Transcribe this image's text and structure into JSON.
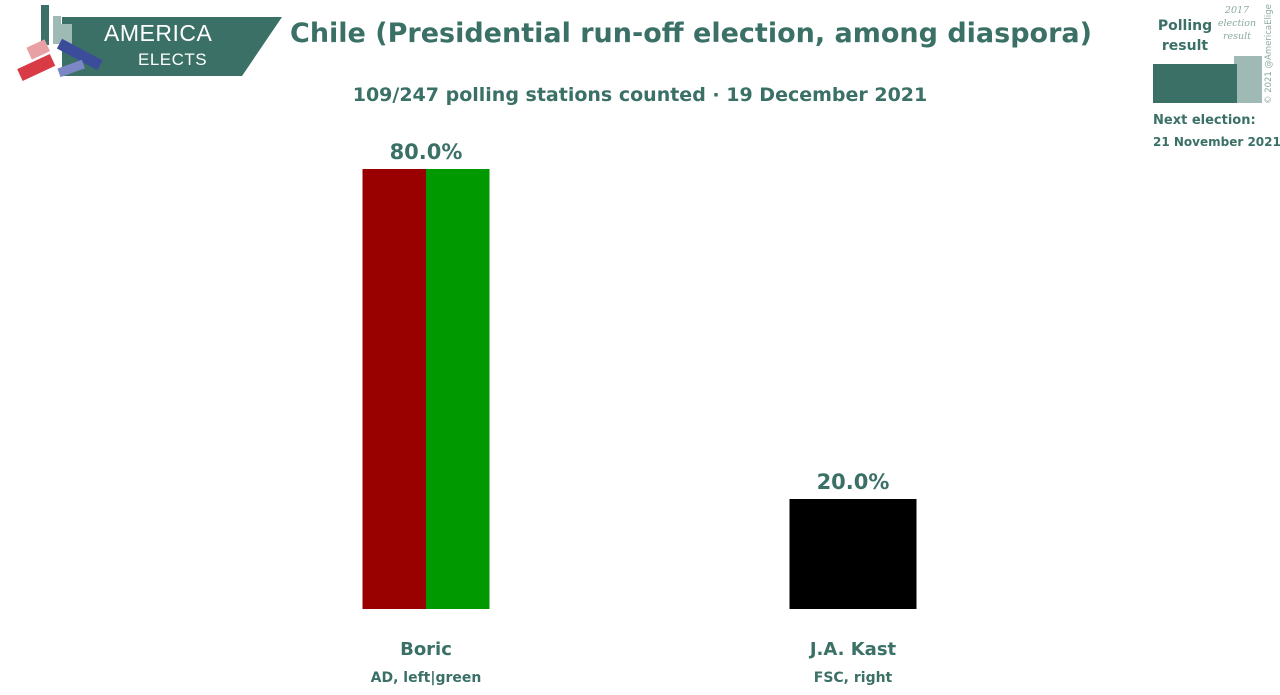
{
  "brand": {
    "line1": "AMERICA",
    "line2": "ELECTS"
  },
  "header": {
    "title": "Chile (Presidential run-off election, among diaspora)",
    "subtitle": "109/247 polling stations counted · 19 December 2021"
  },
  "legend": {
    "polling": "Polling result",
    "previous": "2017 election result",
    "copyright": "© 2021 @AmericaElige",
    "next_label": "Next election:",
    "next_date": "21 November 2021"
  },
  "colors": {
    "brand": "#3a7066",
    "brand_light": "#9fb9b4"
  },
  "chart_data": {
    "type": "bar",
    "ylim": [
      0,
      80
    ],
    "categories": [
      "Boric",
      "J.A. Kast"
    ],
    "values": [
      80.0,
      20.0
    ],
    "value_labels": [
      "80.0%",
      "20.0%"
    ],
    "parties": [
      "AD, left|green",
      "FSC, right"
    ],
    "bar_colors": [
      [
        "#990000",
        "#009900"
      ],
      [
        "#000000"
      ]
    ],
    "grid": false,
    "legend_position": "top-right"
  }
}
